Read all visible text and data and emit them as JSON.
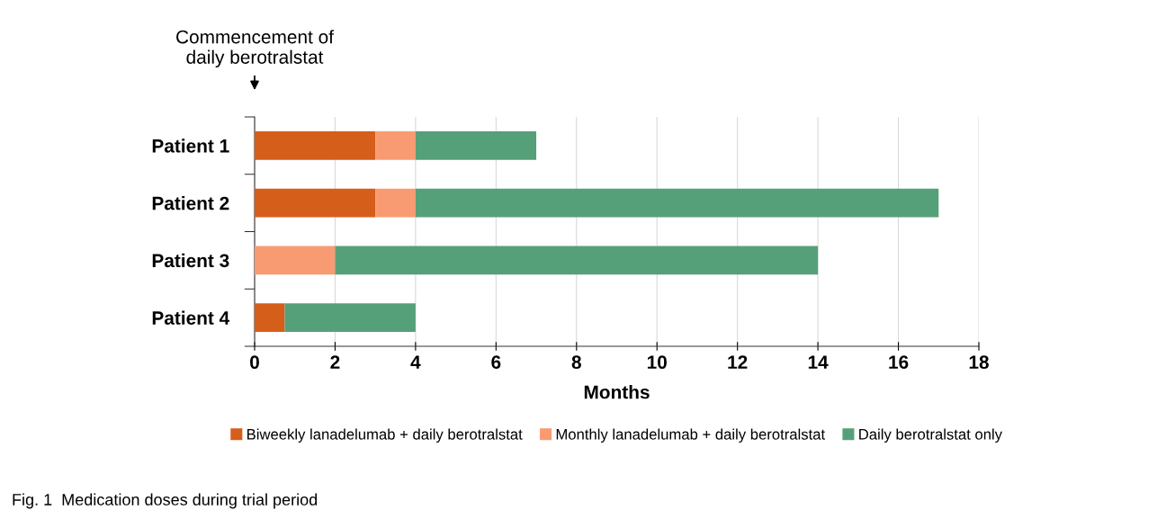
{
  "chart_data": {
    "type": "bar",
    "orientation": "horizontal",
    "stacked": true,
    "categories": [
      "Patient 1",
      "Patient 2",
      "Patient 3",
      "Patient 4"
    ],
    "series": [
      {
        "name": "Biweekly lanadelumab + daily berotralstat",
        "color": "#d55e1b",
        "values": [
          3,
          3,
          0,
          0.75
        ]
      },
      {
        "name": "Monthly lanadelumab + daily berotralstat",
        "color": "#f89b72",
        "values": [
          1,
          1,
          2,
          0
        ]
      },
      {
        "name": "Daily berotralstat only",
        "color": "#56a079",
        "values": [
          3,
          13,
          12,
          3.25
        ]
      }
    ],
    "xlabel": "Months",
    "xlim": [
      0,
      18
    ],
    "xticks": [
      0,
      2,
      4,
      6,
      8,
      10,
      12,
      14,
      16,
      18
    ],
    "grid": "x",
    "legend": "bottom",
    "annotations": [
      "Commencement of\ndaily berotralstat",
      "Fig. 1  Medication doses during trial period"
    ]
  }
}
